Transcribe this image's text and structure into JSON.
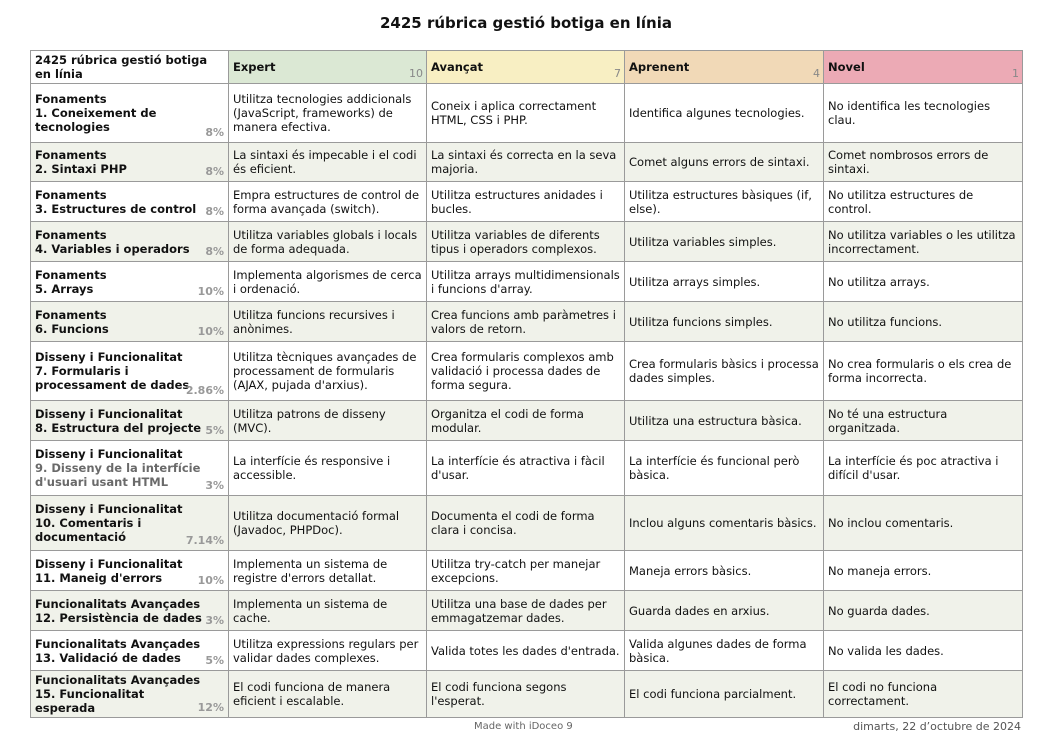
{
  "title": "2425 rúbrica gestió botiga en línia",
  "corner_label": "2425 rúbrica gestió botiga en línia",
  "levels": [
    {
      "name": "Expert",
      "points": "10",
      "color": "#dbe8d4"
    },
    {
      "name": "Avançat",
      "points": "7",
      "color": "#f8efc3"
    },
    {
      "name": "Aprenent",
      "points": "4",
      "color": "#f1d9b7"
    },
    {
      "name": "Novel",
      "points": "1",
      "color": "#ecaab5"
    }
  ],
  "criteria": [
    {
      "category": "Fonaments",
      "name": "1. Coneixement de tecnologies",
      "weight": "8%",
      "cells": [
        "Utilitza tecnologies addicionals (JavaScript, frameworks) de manera efectiva.",
        "Coneix i aplica correctament HTML, CSS i PHP.",
        "Identifica algunes tecnologies.",
        "No identifica les tecnologies clau."
      ]
    },
    {
      "category": "Fonaments",
      "name": "2. Sintaxi PHP",
      "weight": "8%",
      "cells": [
        "La sintaxi és impecable i el codi és eficient.",
        "La sintaxi és correcta en la seva majoria.",
        "Comet alguns errors de sintaxi.",
        "Comet nombrosos errors de sintaxi."
      ]
    },
    {
      "category": "Fonaments",
      "name": "3. Estructures de control",
      "weight": "8%",
      "cells": [
        "Empra estructures de control de forma avançada (switch).",
        "Utilitza estructures anidades i bucles.",
        "Utilitza estructures bàsiques (if, else).",
        "No utilitza estructures de control."
      ]
    },
    {
      "category": "Fonaments",
      "name": "4. Variables i operadors",
      "weight": "8%",
      "cells": [
        "Utilitza variables globals i locals de forma adequada.",
        "Utilitza variables de diferents tipus i operadors complexos.",
        "Utilitza variables simples.",
        "No utilitza variables o les utilitza incorrectament."
      ]
    },
    {
      "category": "Fonaments",
      "name": "5. Arrays",
      "weight": "10%",
      "cells": [
        "Implementa algorismes de cerca i ordenació.",
        "Utilitza arrays multidimensionals i funcions d'array.",
        "Utilitza arrays simples.",
        "No utilitza arrays."
      ]
    },
    {
      "category": "Fonaments",
      "name": "6. Funcions",
      "weight": "10%",
      "cells": [
        "Utilitza funcions recursives i anònimes.",
        "Crea funcions amb paràmetres i valors de retorn.",
        "Utilitza funcions simples.",
        "No utilitza funcions."
      ]
    },
    {
      "category": "Disseny i Funcionalitat",
      "name": "7. Formularis i processament de dades",
      "weight": "2.86%",
      "cells": [
        "Utilitza tècniques avançades de processament de formularis (AJAX, pujada d'arxius).",
        "Crea formularis complexos amb validació i processa dades de forma segura.",
        "Crea formularis bàsics i processa dades simples.",
        "No crea formularis o els crea de forma incorrecta."
      ]
    },
    {
      "category": "Disseny i Funcionalitat",
      "name": "8. Estructura del projecte",
      "weight": "5%",
      "cells": [
        "Utilitza patrons de disseny (MVC).",
        "Organitza el codi de forma modular.",
        "Utilitza una estructura bàsica.",
        "No té una estructura organitzada."
      ]
    },
    {
      "category": "Disseny i Funcionalitat",
      "name": "9. Disseny de la interfície d'usuari usant HTML",
      "weight": "3%",
      "grey": true,
      "cells": [
        "La interfície és responsive i accessible.",
        "La interfície és atractiva i fàcil d'usar.",
        "La interfície és funcional però bàsica.",
        "La interfície és poc atractiva i difícil d'usar."
      ]
    },
    {
      "category": "Disseny i Funcionalitat",
      "name": "10. Comentaris i documentació",
      "weight": "7.14%",
      "cells": [
        "Utilitza documentació formal (Javadoc, PHPDoc).",
        "Documenta el codi de forma clara i concisa.",
        "Inclou alguns comentaris bàsics.",
        "No inclou comentaris."
      ]
    },
    {
      "category": "Disseny i Funcionalitat",
      "name": "11. Maneig d'errors",
      "weight": "10%",
      "cells": [
        "Implementa un sistema de registre d'errors detallat.",
        "Utilitza try-catch per manejar excepcions.",
        "Maneja errors bàsics.",
        "No maneja errors."
      ]
    },
    {
      "category": "Funcionalitats Avançades",
      "name": "12. Persistència de dades",
      "weight": "3%",
      "cells": [
        "Implementa un sistema de cache.",
        "Utilitza una base de dades per emmagatzemar dades.",
        "Guarda dades en arxius.",
        "No guarda dades."
      ]
    },
    {
      "category": "Funcionalitats Avançades",
      "name": "13. Validació de dades",
      "weight": "5%",
      "cells": [
        "Utilitza expressions regulars per validar dades complexes.",
        "Valida totes les dades d'entrada.",
        "Valida algunes dades de forma bàsica.",
        "No valida les dades."
      ]
    },
    {
      "category": "Funcionalitats Avançades",
      "name": "15. Funcionalitat esperada",
      "weight": "12%",
      "cells": [
        "El codi funciona de manera eficient i escalable.",
        "El codi funciona segons l'esperat.",
        "El codi funciona parcialment.",
        "El codi no funciona correctament."
      ]
    }
  ],
  "footer": {
    "made_with": "Made with iDoceo 9",
    "date": "dimarts, 22 d’octubre de 2024"
  }
}
